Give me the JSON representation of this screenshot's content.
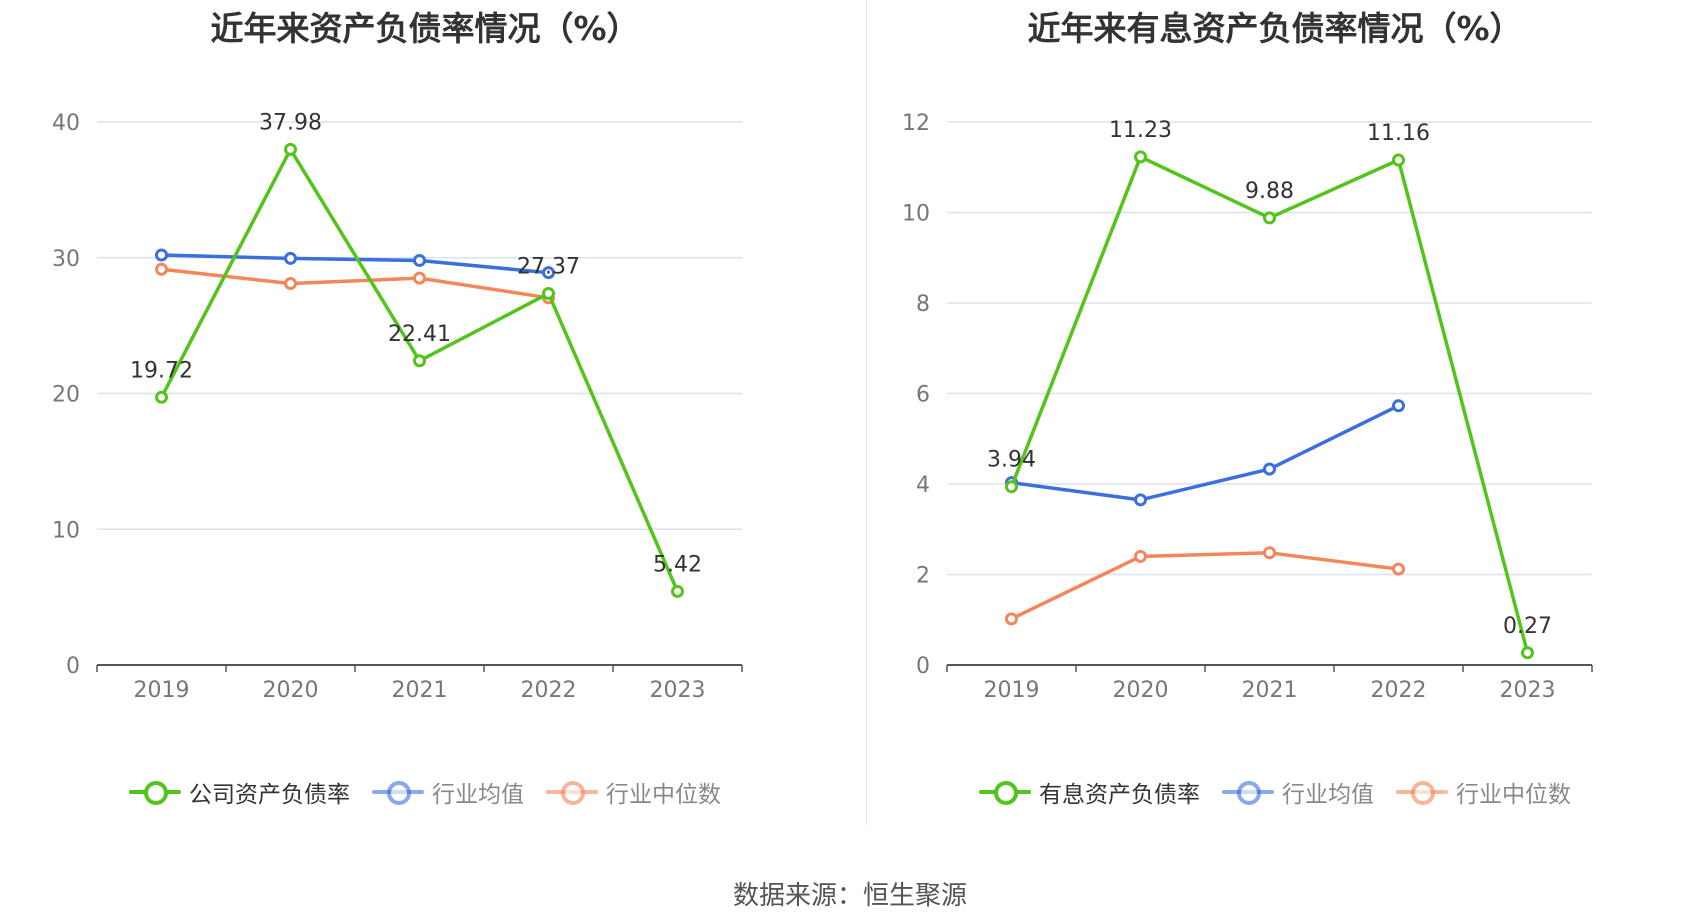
{
  "footer": {
    "source": "数据来源：恒生聚源"
  },
  "colors": {
    "company": "#52c41a",
    "avg": "#3a6fdc",
    "median": "#f2875a",
    "grid": "#dde0f0",
    "axis": "#555555"
  },
  "chart_data": [
    {
      "type": "line",
      "title": "近年来资产负债率情况（%）",
      "xlabel": "",
      "ylabel": "",
      "categories": [
        "2019",
        "2020",
        "2021",
        "2022",
        "2023"
      ],
      "ylim": [
        0,
        40
      ],
      "yticks": [
        0,
        10,
        20,
        30,
        40
      ],
      "grid": true,
      "legend_position": "bottom",
      "series": [
        {
          "name": "公司资产负债率",
          "color": "#52c41a",
          "values": [
            19.72,
            37.98,
            22.41,
            27.37,
            5.42
          ],
          "show_labels": true
        },
        {
          "name": "行业均值",
          "color": "#3a6fdc",
          "values": [
            30.2,
            29.95,
            29.8,
            28.9,
            null
          ],
          "show_labels": false
        },
        {
          "name": "行业中位数",
          "color": "#f2875a",
          "values": [
            29.15,
            28.1,
            28.5,
            27.05,
            null
          ],
          "show_labels": false
        }
      ]
    },
    {
      "type": "line",
      "title": "近年来有息资产负债率情况（%）",
      "xlabel": "",
      "ylabel": "",
      "categories": [
        "2019",
        "2020",
        "2021",
        "2022",
        "2023"
      ],
      "ylim": [
        0,
        12
      ],
      "yticks": [
        0,
        2,
        4,
        6,
        8,
        10,
        12
      ],
      "grid": true,
      "legend_position": "bottom",
      "series": [
        {
          "name": "有息资产负债率",
          "color": "#52c41a",
          "values": [
            3.94,
            11.23,
            9.88,
            11.16,
            0.27
          ],
          "show_labels": true
        },
        {
          "name": "行业均值",
          "color": "#3a6fdc",
          "values": [
            4.03,
            3.65,
            4.33,
            5.73,
            null
          ],
          "show_labels": false
        },
        {
          "name": "行业中位数",
          "color": "#f2875a",
          "values": [
            1.02,
            2.4,
            2.48,
            2.12,
            null
          ],
          "show_labels": false
        }
      ]
    }
  ]
}
